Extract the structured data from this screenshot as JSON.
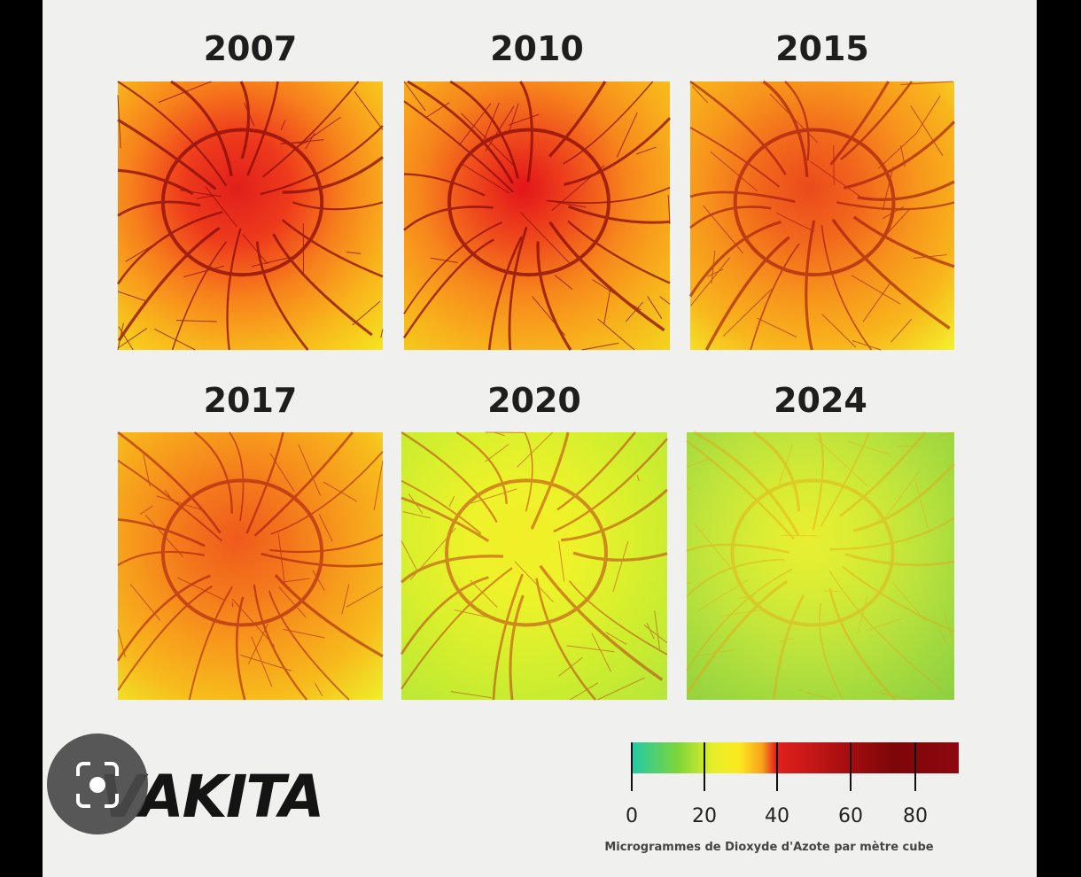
{
  "panels": [
    {
      "year": "2007"
    },
    {
      "year": "2010"
    },
    {
      "year": "2015"
    },
    {
      "year": "2017"
    },
    {
      "year": "2020"
    },
    {
      "year": "2024"
    }
  ],
  "logo": "VAKITA",
  "legend": {
    "ticks": [
      "0",
      "20",
      "40",
      "60",
      "80"
    ],
    "caption": "Microgrammes de Dioxyde d'Azote par mètre cube"
  }
}
